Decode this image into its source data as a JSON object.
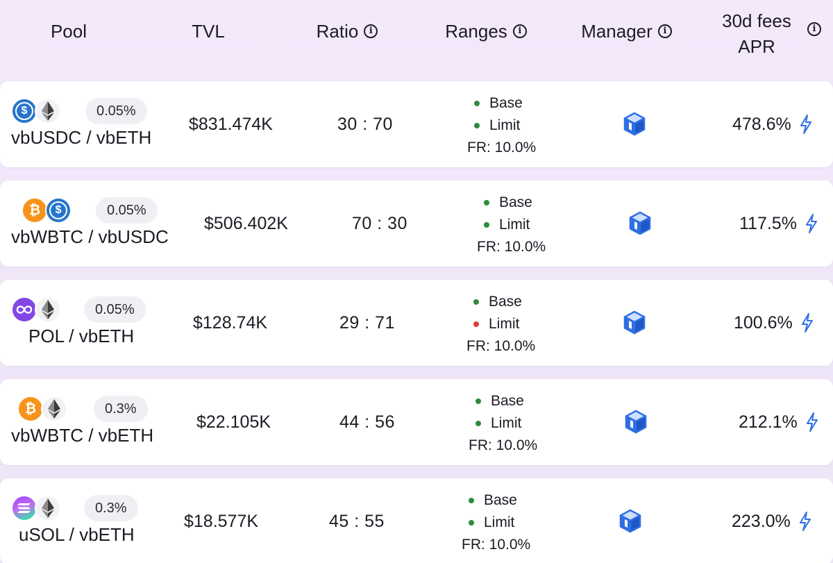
{
  "header": {
    "pool": "Pool",
    "tvl": "TVL",
    "ratio": "Ratio",
    "ranges": "Ranges",
    "manager": "Manager",
    "apr_line1": "30d fees",
    "apr_line2": "APR",
    "info_glyph": "i"
  },
  "colors": {
    "in_range": "#2e8b3a",
    "out_of_range": "#e03a3a",
    "accent": "#2f6fe4"
  },
  "rows": [
    {
      "tokens": [
        "usdc-icon",
        "eth-icon"
      ],
      "fee": "0.05%",
      "pair": "vbUSDC / vbETH",
      "tvl": "$831.474K",
      "ratio": "30 : 70",
      "base": "Base",
      "limit": "Limit",
      "base_status": "in-range",
      "limit_status": "in-range",
      "fr": "FR: 10.0%",
      "apr": "478.6%"
    },
    {
      "tokens": [
        "btc-icon",
        "usdc-icon"
      ],
      "fee": "0.05%",
      "pair": "vbWBTC / vbUSDC",
      "tvl": "$506.402K",
      "ratio": "70 : 30",
      "base": "Base",
      "limit": "Limit",
      "base_status": "in-range",
      "limit_status": "in-range",
      "fr": "FR: 10.0%",
      "apr": "117.5%"
    },
    {
      "tokens": [
        "pol-icon",
        "eth-icon"
      ],
      "fee": "0.05%",
      "pair": "POL / vbETH",
      "tvl": "$128.74K",
      "ratio": "29 : 71",
      "base": "Base",
      "limit": "Limit",
      "base_status": "in-range",
      "limit_status": "out-of-range",
      "fr": "FR: 10.0%",
      "apr": "100.6%"
    },
    {
      "tokens": [
        "btc-icon",
        "eth-icon"
      ],
      "fee": "0.3%",
      "pair": "vbWBTC / vbETH",
      "tvl": "$22.105K",
      "ratio": "44 : 56",
      "base": "Base",
      "limit": "Limit",
      "base_status": "in-range",
      "limit_status": "in-range",
      "fr": "FR: 10.0%",
      "apr": "212.1%"
    },
    {
      "tokens": [
        "sol-icon",
        "eth-icon"
      ],
      "fee": "0.3%",
      "pair": "uSOL / vbETH",
      "tvl": "$18.577K",
      "ratio": "45 : 55",
      "base": "Base",
      "limit": "Limit",
      "base_status": "in-range",
      "limit_status": "in-range",
      "fr": "FR: 10.0%",
      "apr": "223.0%"
    }
  ]
}
